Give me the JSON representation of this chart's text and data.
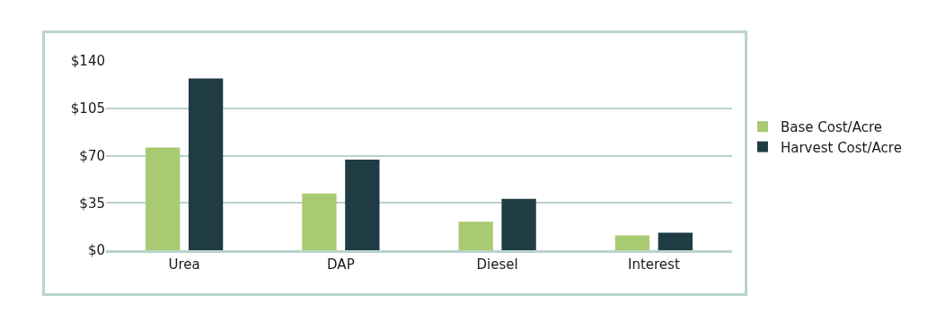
{
  "chart_data": {
    "type": "bar",
    "categories": [
      "Urea",
      "DAP",
      "Diesel",
      "Interest"
    ],
    "series": [
      {
        "name": "Base Cost/Acre",
        "color": "#a8cb72",
        "values": [
          76,
          42,
          21,
          11
        ]
      },
      {
        "name": "Harvest Cost/Acre",
        "color": "#1f3c45",
        "values": [
          127,
          67,
          38,
          13
        ]
      }
    ],
    "ylim": [
      0,
      140
    ],
    "yticks": [
      {
        "value": 0,
        "label": "$0"
      },
      {
        "value": 35,
        "label": "$35"
      },
      {
        "value": 70,
        "label": "$70"
      },
      {
        "value": 105,
        "label": "$105"
      },
      {
        "value": 140,
        "label": "$140"
      }
    ],
    "grid": "y",
    "legend": "right"
  }
}
